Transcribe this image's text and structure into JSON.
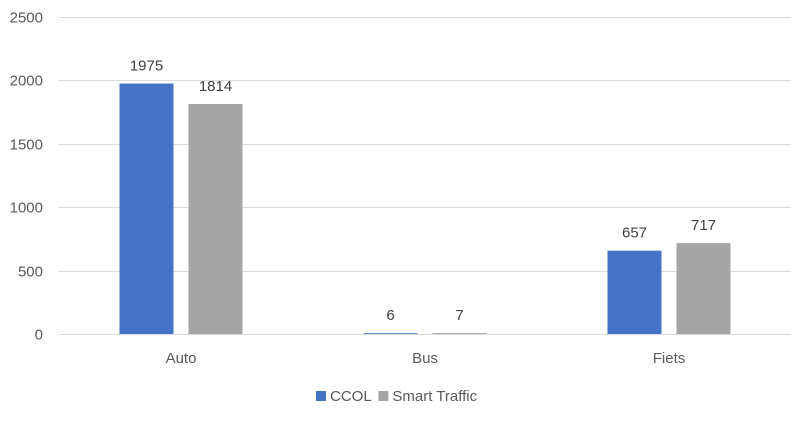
{
  "chart_data": {
    "type": "bar",
    "categories": [
      "Auto",
      "Bus",
      "Fiets"
    ],
    "series": [
      {
        "name": "CCOL",
        "values": [
          1975,
          6,
          657
        ],
        "color": "#4472C4"
      },
      {
        "name": "Smart Traffic",
        "values": [
          1814,
          7,
          717
        ],
        "color": "#A5A5A5"
      }
    ],
    "ylim": [
      0,
      2500
    ],
    "yticks": [
      0,
      500,
      1000,
      1500,
      2000,
      2500
    ],
    "ytick_labels": [
      "0",
      "500",
      "1000",
      "1500",
      "2000",
      "2500"
    ],
    "data_labels": true,
    "grid": true,
    "grid_color": "#D9D9D9",
    "legend_position": "bottom",
    "title": "",
    "xlabel": "",
    "ylabel": ""
  }
}
